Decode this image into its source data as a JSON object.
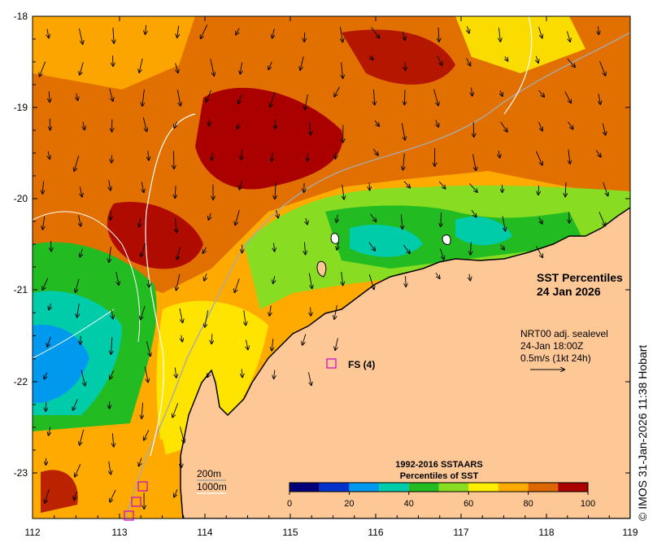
{
  "title": {
    "line1": "SST Percentiles",
    "line2": "24 Jan 2026"
  },
  "current_info": {
    "line1": "NRT00 adj. sealevel",
    "line2": "24-Jan 18:00Z",
    "line3": "0.5m/s (1kt 24h)"
  },
  "station": {
    "label": "FS (4)",
    "color": "#cc00cc"
  },
  "contours": {
    "label1": "200m",
    "label2": "1000m"
  },
  "legend": {
    "title1": "1992-2016 SSTAARS",
    "title2": "Percentiles of SST",
    "ticks": [
      "0",
      "20",
      "40",
      "60",
      "80",
      "100"
    ],
    "colors": [
      "#00007a",
      "#0033cc",
      "#0099ee",
      "#00ccaa",
      "#22bb22",
      "#88dd22",
      "#ffee00",
      "#ffaa00",
      "#dd6600",
      "#aa0000"
    ]
  },
  "axes": {
    "x_ticks": [
      "112",
      "113",
      "114",
      "115",
      "116",
      "117",
      "118",
      "119"
    ],
    "y_ticks": [
      "-18",
      "-19",
      "-20",
      "-21",
      "-22",
      "-23"
    ]
  },
  "land_color": "#fdc896",
  "copyright": "© IMOS 31-Jan-2026 11:38 Hobart"
}
